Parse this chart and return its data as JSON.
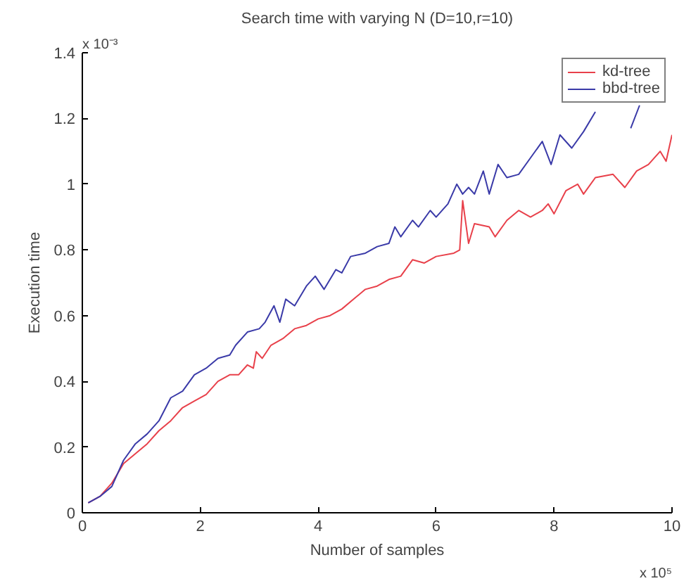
{
  "chart_data": {
    "type": "line",
    "title": "Search time with varying N (D=10,r=10)",
    "xlabel": "Number of samples",
    "ylabel": "Execution time",
    "annotations": [
      "x 10⁻³",
      "x 10⁵"
    ],
    "xlim": [
      0,
      10
    ],
    "ylim": [
      0,
      1.4
    ],
    "xticks": [
      0,
      2,
      4,
      6,
      8,
      10
    ],
    "yticks": [
      0,
      0.2,
      0.4,
      0.6,
      0.8,
      1,
      1.2,
      1.4
    ],
    "grid": false,
    "legend": "top right",
    "series": [
      {
        "name": "kd-tree",
        "color": "#e8404a",
        "x": [
          0.1,
          0.3,
          0.5,
          0.7,
          0.9,
          1.1,
          1.3,
          1.5,
          1.7,
          1.9,
          2.1,
          2.3,
          2.5,
          2.65,
          2.8,
          2.9,
          2.95,
          3.05,
          3.2,
          3.3,
          3.4,
          3.6,
          3.8,
          4.0,
          4.2,
          4.4,
          4.6,
          4.8,
          5.0,
          5.2,
          5.4,
          5.6,
          5.8,
          6.0,
          6.3,
          6.4,
          6.45,
          6.55,
          6.65,
          6.9,
          7.0,
          7.2,
          7.4,
          7.6,
          7.8,
          7.9,
          8.0,
          8.2,
          8.4,
          8.5,
          8.7,
          9.0,
          9.2,
          9.4,
          9.6,
          9.8,
          9.9,
          10
        ],
        "values": [
          0.03,
          0.05,
          0.09,
          0.15,
          0.18,
          0.21,
          0.25,
          0.28,
          0.32,
          0.34,
          0.36,
          0.4,
          0.42,
          0.42,
          0.45,
          0.44,
          0.49,
          0.47,
          0.51,
          0.52,
          0.53,
          0.56,
          0.57,
          0.59,
          0.6,
          0.62,
          0.65,
          0.68,
          0.69,
          0.71,
          0.72,
          0.77,
          0.76,
          0.78,
          0.79,
          0.8,
          0.95,
          0.82,
          0.88,
          0.87,
          0.84,
          0.89,
          0.92,
          0.9,
          0.92,
          0.94,
          0.91,
          0.98,
          1.0,
          0.97,
          1.02,
          1.03,
          0.99,
          1.04,
          1.06,
          1.1,
          1.07,
          1.15
        ]
      },
      {
        "name": "bbd-tree",
        "color": "#3a3aa8",
        "x": [
          0.1,
          0.3,
          0.5,
          0.7,
          0.9,
          1.1,
          1.3,
          1.5,
          1.7,
          1.9,
          2.1,
          2.3,
          2.5,
          2.6,
          2.8,
          3.0,
          3.1,
          3.25,
          3.35,
          3.45,
          3.6,
          3.8,
          3.95,
          4.1,
          4.3,
          4.4,
          4.55,
          4.8,
          5.0,
          5.2,
          5.3,
          5.4,
          5.6,
          5.7,
          5.9,
          6.0,
          6.2,
          6.35,
          6.45,
          6.55,
          6.65,
          6.8,
          6.9,
          7.05,
          7.2,
          7.4,
          7.6,
          7.8,
          7.95,
          8.1,
          8.3,
          8.5,
          8.7,
          8.9,
          9.3,
          9.45
        ],
        "values": [
          0.03,
          0.05,
          0.08,
          0.16,
          0.21,
          0.24,
          0.28,
          0.35,
          0.37,
          0.42,
          0.44,
          0.47,
          0.48,
          0.51,
          0.55,
          0.56,
          0.58,
          0.63,
          0.58,
          0.65,
          0.63,
          0.69,
          0.72,
          0.68,
          0.74,
          0.73,
          0.78,
          0.79,
          0.81,
          0.82,
          0.87,
          0.84,
          0.89,
          0.87,
          0.92,
          0.9,
          0.94,
          1.0,
          0.97,
          0.99,
          0.97,
          1.04,
          0.97,
          1.06,
          1.02,
          1.03,
          1.08,
          1.13,
          1.06,
          1.15,
          1.11,
          1.16,
          1.22,
          null,
          1.17,
          1.24
        ]
      }
    ]
  }
}
